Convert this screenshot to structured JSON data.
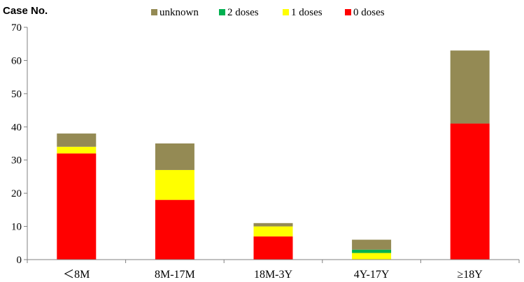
{
  "chart_data": {
    "type": "bar",
    "stacked": true,
    "ylabel": "Case No.",
    "ylim": [
      0,
      70
    ],
    "yticks": [
      0,
      10,
      20,
      30,
      40,
      50,
      60,
      70
    ],
    "categories": [
      "<8M",
      "8M-17M",
      "18M-3Y",
      "4Y-17Y",
      "≥18Y"
    ],
    "category_display": [
      "＜8M",
      "8M-17M",
      "18M-3Y",
      "4Y-17Y",
      "≥18Y"
    ],
    "legend_position": "top",
    "grid": false,
    "series": [
      {
        "name": "0 doses",
        "color": "#ff0000",
        "values": [
          32,
          18,
          7,
          0,
          41
        ]
      },
      {
        "name": "1 doses",
        "color": "#ffff00",
        "values": [
          2,
          9,
          3,
          2,
          0
        ]
      },
      {
        "name": "2 doses",
        "color": "#00b050",
        "values": [
          0,
          0,
          0,
          1,
          0
        ]
      },
      {
        "name": "unknown",
        "color": "#948a54",
        "values": [
          4,
          8,
          1,
          3,
          22
        ]
      }
    ],
    "legend_order": [
      "unknown",
      "2 doses",
      "1 doses",
      "0 doses"
    ]
  }
}
